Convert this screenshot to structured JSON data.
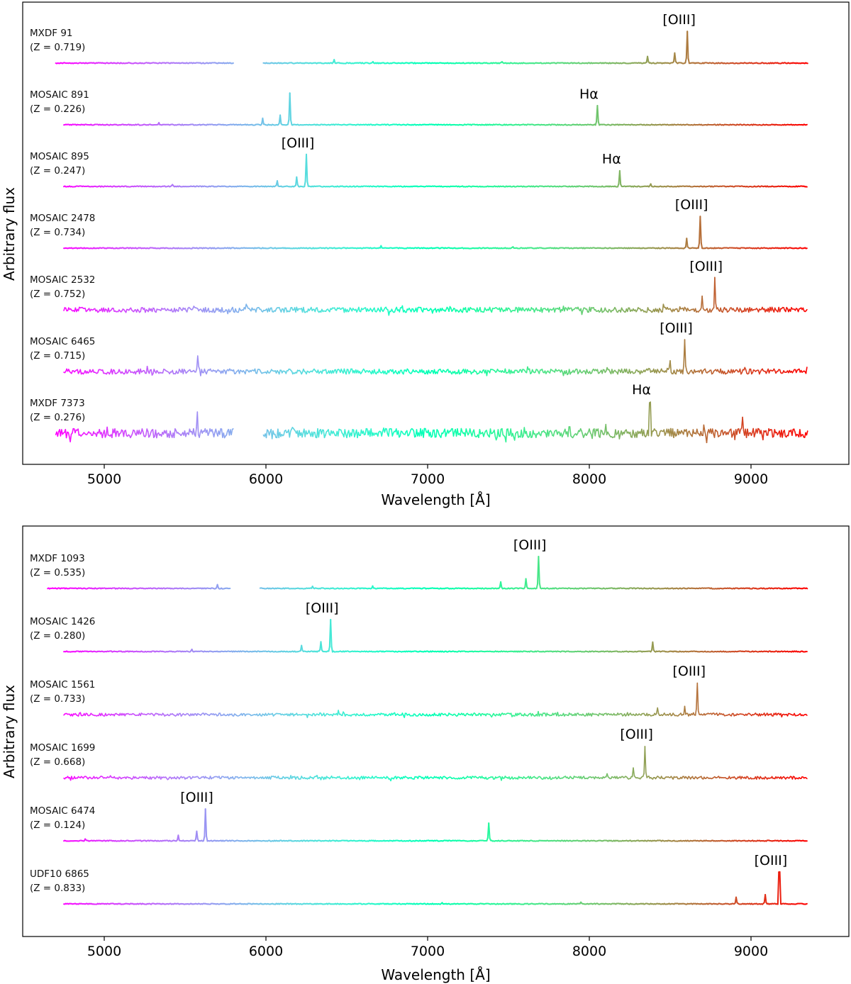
{
  "chart_data": [
    {
      "type": "line",
      "panel": "top",
      "xlabel": "Wavelength [Å]",
      "ylabel": "Arbitrary flux",
      "xlim": [
        4500,
        9600
      ],
      "xticks": [
        "5000",
        "6000",
        "7000",
        "8000",
        "9000"
      ],
      "colormap": "rainbow",
      "series": [
        {
          "name": "MXDF 91",
          "redshift": "(Z = 0.719)",
          "x_range": [
            4700,
            9350
          ],
          "gap": [
            5800,
            5980
          ],
          "noise": "low",
          "peaks": [
            [
              6420,
              0.1
            ],
            [
              6660,
              0.05
            ],
            [
              7460,
              0.05
            ],
            [
              8360,
              0.2
            ],
            [
              8530,
              0.32
            ],
            [
              8608,
              1.0
            ]
          ],
          "label": {
            "text": "[OIII]",
            "wavelength": 8608
          }
        },
        {
          "name": "MOSAIC 891",
          "redshift": "(Z = 0.226)",
          "x_range": [
            4750,
            9350
          ],
          "noise": "low",
          "peaks": [
            [
              5340,
              0.08
            ],
            [
              5980,
              0.2
            ],
            [
              6090,
              0.3
            ],
            [
              6150,
              1.0
            ],
            [
              8050,
              0.6
            ]
          ],
          "label": {
            "text": "Hα",
            "wavelength": 8050
          }
        },
        {
          "name": "MOSAIC 895",
          "redshift": "(Z = 0.247)",
          "x_range": [
            4750,
            9350
          ],
          "noise": "low",
          "peaks": [
            [
              5420,
              0.07
            ],
            [
              6070,
              0.18
            ],
            [
              6190,
              0.3
            ],
            [
              6250,
              1.0
            ],
            [
              8190,
              0.5
            ],
            [
              8380,
              0.08
            ]
          ],
          "label": [
            {
              "text": "[OIII]",
              "wavelength": 6250
            },
            {
              "text": "Hα",
              "wavelength": 8190
            }
          ]
        },
        {
          "name": "MOSAIC 2478",
          "redshift": "(Z = 0.734)",
          "x_range": [
            4750,
            9350
          ],
          "noise": "low",
          "peaks": [
            [
              6710,
              0.07
            ],
            [
              7530,
              0.05
            ],
            [
              8600,
              0.3
            ],
            [
              8685,
              1.0
            ]
          ],
          "label": {
            "text": "[OIII]",
            "wavelength": 8685
          }
        },
        {
          "name": "MOSAIC 2532",
          "redshift": "(Z = 0.752)",
          "x_range": [
            4750,
            9350
          ],
          "noise": "high",
          "peaks": [
            [
              5880,
              0.2
            ],
            [
              8700,
              0.4
            ],
            [
              8775,
              1.0
            ]
          ],
          "label": {
            "text": "[OIII]",
            "wavelength": 8775
          }
        },
        {
          "name": "MOSAIC 6465",
          "redshift": "(Z = 0.715)",
          "x_range": [
            4750,
            9350
          ],
          "noise": "high",
          "peaks": [
            [
              5577,
              0.55
            ],
            [
              8500,
              0.3
            ],
            [
              8590,
              1.0
            ]
          ],
          "label": {
            "text": "[OIII]",
            "wavelength": 8590
          }
        },
        {
          "name": "MXDF 7373",
          "redshift": "(Z = 0.276)",
          "x_range": [
            4700,
            9350
          ],
          "gap": [
            5800,
            5980
          ],
          "noise": "very-high",
          "peaks": [
            [
              5577,
              0.5
            ],
            [
              8375,
              1.0
            ],
            [
              8950,
              0.6
            ]
          ],
          "label": {
            "text": "Hα",
            "wavelength": 8375
          }
        }
      ]
    },
    {
      "type": "line",
      "panel": "bottom",
      "xlabel": "Wavelength [Å]",
      "ylabel": "Arbitrary flux",
      "xlim": [
        4500,
        9600
      ],
      "xticks": [
        "5000",
        "6000",
        "7000",
        "8000",
        "9000"
      ],
      "colormap": "rainbow",
      "series": [
        {
          "name": "MXDF 1093",
          "redshift": "(Z = 0.535)",
          "x_range": [
            4650,
            9350
          ],
          "gap": [
            5780,
            5960
          ],
          "noise": "low",
          "peaks": [
            [
              5700,
              0.12
            ],
            [
              6290,
              0.08
            ],
            [
              6660,
              0.07
            ],
            [
              7450,
              0.2
            ],
            [
              7610,
              0.3
            ],
            [
              7685,
              1.0
            ]
          ],
          "label": {
            "text": "[OIII]",
            "wavelength": 7685
          }
        },
        {
          "name": "MOSAIC 1426",
          "redshift": "(Z = 0.280)",
          "x_range": [
            4750,
            9350
          ],
          "noise": "low",
          "peaks": [
            [
              5540,
              0.08
            ],
            [
              6220,
              0.2
            ],
            [
              6340,
              0.3
            ],
            [
              6400,
              1.0
            ],
            [
              8390,
              0.3
            ]
          ],
          "label": {
            "text": "[OIII]",
            "wavelength": 6400
          }
        },
        {
          "name": "MOSAIC 1561",
          "redshift": "(Z = 0.733)",
          "x_range": [
            4750,
            9350
          ],
          "noise": "medium",
          "peaks": [
            [
              6450,
              0.15
            ],
            [
              8420,
              0.18
            ],
            [
              8590,
              0.3
            ],
            [
              8670,
              1.0
            ]
          ],
          "label": {
            "text": "[OIII]",
            "wavelength": 8670
          }
        },
        {
          "name": "MOSAIC 1699",
          "redshift": "(Z = 0.668)",
          "x_range": [
            4750,
            9350
          ],
          "noise": "medium",
          "peaks": [
            [
              8110,
              0.15
            ],
            [
              8270,
              0.35
            ],
            [
              8345,
              1.0
            ]
          ],
          "label": {
            "text": "[OIII]",
            "wavelength": 8345
          }
        },
        {
          "name": "MOSAIC 6474",
          "redshift": "(Z = 0.124)",
          "x_range": [
            4750,
            9350
          ],
          "noise": "low",
          "peaks": [
            [
              4880,
              0.05
            ],
            [
              5460,
              0.18
            ],
            [
              5570,
              0.3
            ],
            [
              5625,
              1.0
            ],
            [
              7380,
              0.55
            ]
          ],
          "label": {
            "text": "[OIII]",
            "wavelength": 5625
          }
        },
        {
          "name": "UDF10 6865",
          "redshift": "(Z = 0.833)",
          "x_range": [
            4750,
            9350
          ],
          "noise": "low",
          "peaks": [
            [
              7090,
              0.05
            ],
            [
              7950,
              0.06
            ],
            [
              8910,
              0.2
            ],
            [
              9090,
              0.3
            ],
            [
              9175,
              1.0
            ]
          ],
          "label": {
            "text": "[OIII]",
            "wavelength": 9175
          }
        }
      ]
    }
  ]
}
